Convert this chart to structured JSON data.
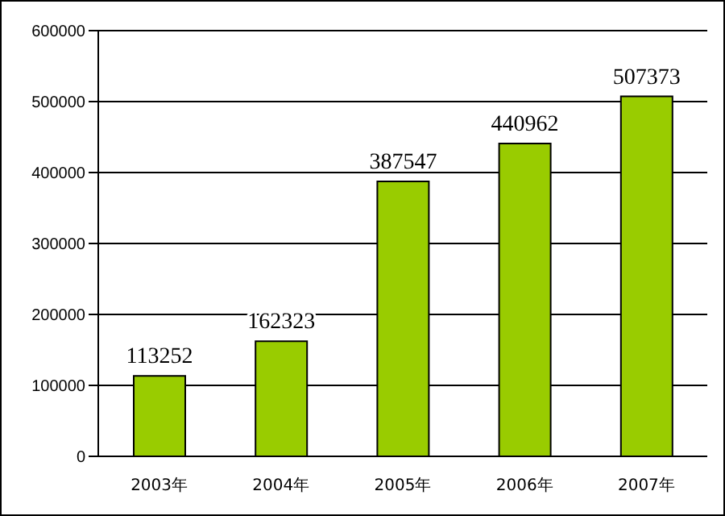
{
  "chart_data": {
    "type": "bar",
    "categories": [
      "2003年",
      "2004年",
      "2005年",
      "2006年",
      "2007年"
    ],
    "values": [
      113252,
      162323,
      387547,
      440962,
      507373
    ],
    "color": "#99cc00",
    "ylim": [
      0,
      600000
    ],
    "yticks": [
      0,
      100000,
      200000,
      300000,
      400000,
      500000,
      600000
    ],
    "grid": "y",
    "data_labels": true
  }
}
